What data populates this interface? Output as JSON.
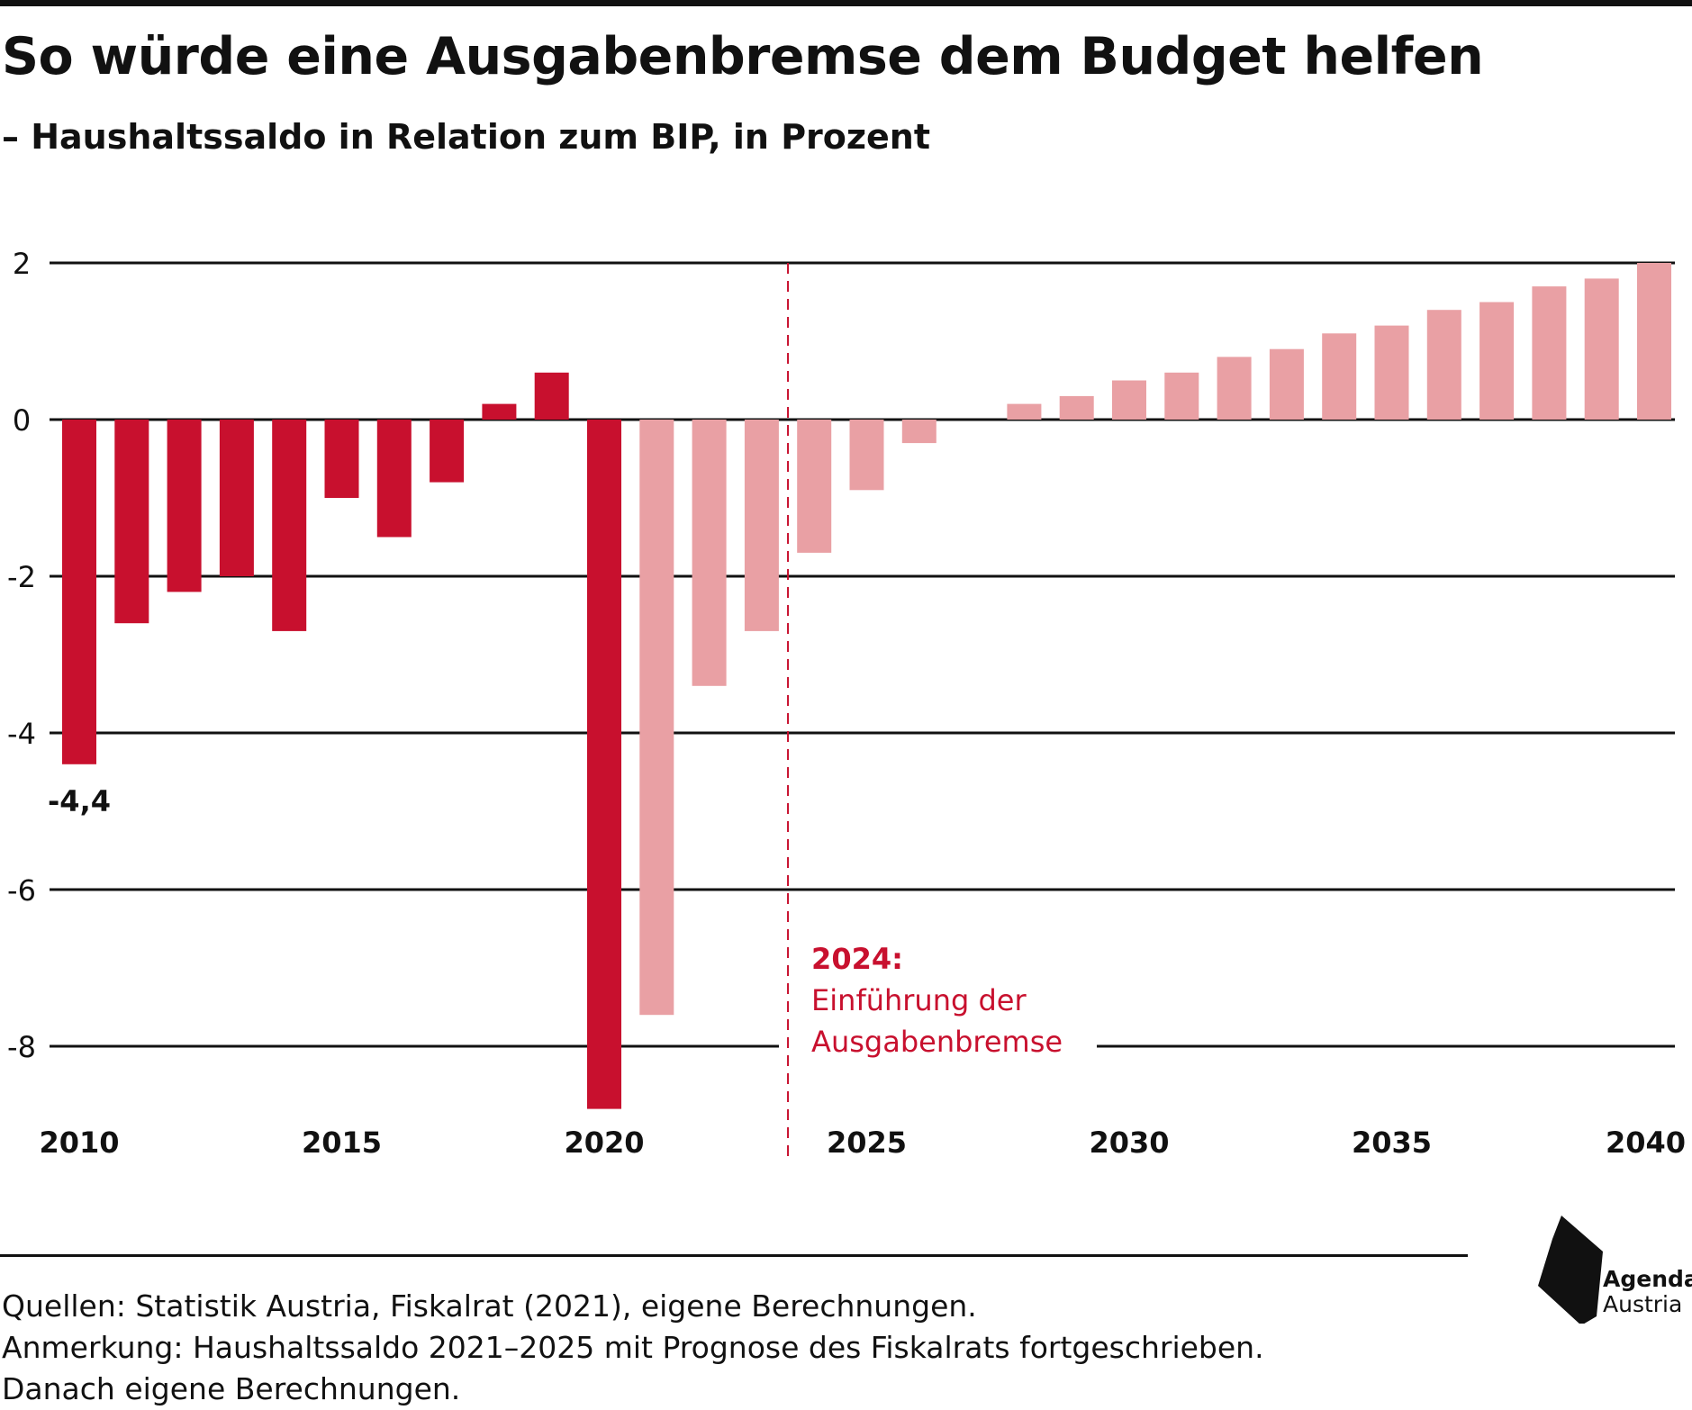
{
  "header": {
    "title": "So würde eine Ausgabenbremse dem Budget helfen",
    "subtitle": "– Haushaltssaldo in Relation zum BIP, in Prozent"
  },
  "colors": {
    "actual": "#c8102e",
    "projection": "#e9a0a4",
    "axis": "#111111",
    "annotation": "#c8102e"
  },
  "chart_data": {
    "type": "bar",
    "title": "So würde eine Ausgabenbremse dem Budget helfen",
    "subtitle": "– Haushaltssaldo in Relation zum BIP, in Prozent",
    "xlabel": "",
    "ylabel": "",
    "ylim": [
      -9,
      2
    ],
    "grid": true,
    "yticks": [
      2,
      0,
      -2,
      -4,
      -6,
      -8
    ],
    "ytick_labels": [
      "2",
      "0",
      "-2",
      "-4",
      "-6",
      "-8"
    ],
    "xtick_labels": [
      "2010",
      "2015",
      "2020",
      "2025",
      "2030",
      "2035",
      "2040"
    ],
    "categories": [
      2010,
      2011,
      2012,
      2013,
      2014,
      2015,
      2016,
      2017,
      2018,
      2019,
      2020,
      2021,
      2022,
      2023,
      2024,
      2025,
      2026,
      2027,
      2028,
      2029,
      2030,
      2031,
      2032,
      2033,
      2034,
      2035,
      2036,
      2037,
      2038,
      2039,
      2040
    ],
    "series": [
      {
        "values": [
          -4.4,
          -2.6,
          -2.2,
          -2.0,
          -2.7,
          -1.0,
          -1.5,
          -0.8,
          0.2,
          0.6,
          -8.8,
          null,
          null,
          null,
          null,
          null,
          null,
          null,
          null,
          null,
          null,
          null,
          null,
          null,
          null,
          null,
          null,
          null,
          null,
          null,
          null
        ],
        "color": "#c8102e"
      },
      {
        "values": [
          null,
          null,
          null,
          null,
          null,
          null,
          null,
          null,
          null,
          null,
          null,
          -7.6,
          -3.4,
          -2.7,
          -1.7,
          -0.9,
          -0.3,
          0.0,
          0.2,
          0.3,
          0.5,
          0.6,
          0.8,
          0.9,
          1.1,
          1.2,
          1.4,
          1.5,
          1.7,
          1.8,
          2.0
        ],
        "color": "#e9a0a4"
      }
    ],
    "data_labels": [
      {
        "year": 2010,
        "text": "-4,4"
      }
    ],
    "annotation": {
      "at_year": 2023.5,
      "line_style": "dashed",
      "lines": [
        "2024:",
        "Einführung der",
        "Ausgabenbremse"
      ]
    }
  },
  "footer": {
    "notes": [
      "Quellen: Statistik Austria, Fiskalrat (2021), eigene Berechnungen.",
      "Anmerkung: Haushaltssaldo 2021–2025 mit Prognose des Fiskalrats fortgeschrieben.",
      "Danach eigene Berechnungen."
    ],
    "logo_name": "Agenda",
    "logo_sub": "Austria",
    "logo_icon": "agenda-austria-logo-mark"
  }
}
